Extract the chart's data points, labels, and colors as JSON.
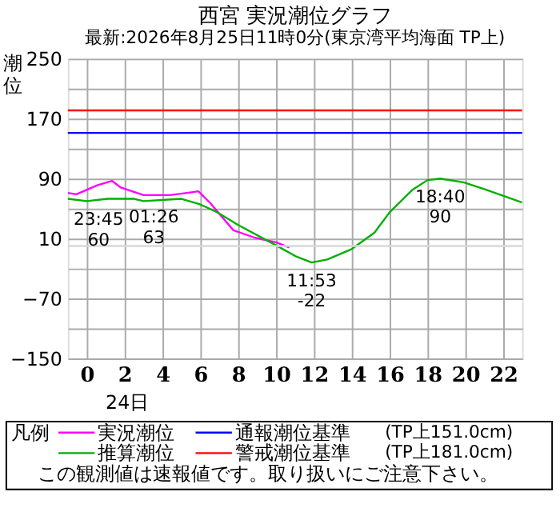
{
  "chart_data": {
    "type": "line",
    "title": "西宮 実況潮位グラフ",
    "subtitle": "最新:2026年8月25日11時0分(東京湾平均海面 TP上)",
    "ylabel": "潮位",
    "legend_title": "凡例",
    "xlim": [
      -1,
      23
    ],
    "xticks": [
      0,
      2,
      4,
      6,
      8,
      10,
      12,
      14,
      16,
      18,
      20,
      22
    ],
    "ylim": [
      -150,
      250
    ],
    "yticks": [
      -150,
      {
        "value": -110,
        "label": null
      },
      -70,
      {
        "value": -30,
        "label": null
      },
      10,
      {
        "value": 50,
        "label": null
      },
      90,
      {
        "value": 130,
        "label": null
      },
      170,
      {
        "value": 210,
        "label": null
      },
      250
    ],
    "grid": true,
    "legend": "bottom",
    "series": [
      {
        "name": "実況潮位",
        "color": "#ff00ff",
        "type": "line",
        "x": [
          -1,
          -0.55,
          0.55,
          1.33,
          1.8,
          3,
          4.4,
          5.3,
          5.9,
          6.5,
          7.75,
          8.9,
          10,
          10.7
        ],
        "values": [
          71,
          69,
          81,
          87,
          78,
          68,
          68,
          71,
          73,
          58,
          21,
          11,
          5,
          -2
        ]
      },
      {
        "name": "推算潮位",
        "color": "#00b000",
        "type": "line",
        "x": [
          -1,
          0,
          1.1,
          2.5,
          3,
          5,
          5.95,
          6.9,
          8,
          10,
          11.07,
          11.88,
          12.7,
          14,
          15.2,
          16,
          17.2,
          18,
          18.67,
          19.9,
          21,
          23
        ],
        "values": [
          63,
          60,
          63,
          63,
          60,
          63,
          56,
          45,
          28,
          1,
          -14,
          -22,
          -18,
          -4,
          18,
          45,
          75,
          88,
          90,
          85,
          76,
          58
        ]
      }
    ],
    "ref_lines": [
      {
        "axis": "y",
        "value": 151,
        "label": "通報潮位基準 (TP上151.0cm)",
        "color": "#0000ff"
      },
      {
        "axis": "y",
        "value": 181,
        "label": "警戒潮位基準 (TP上181.0cm)",
        "color": "#ff0000"
      },
      {
        "axis": "y",
        "value": 0,
        "color": "#d8d8d8"
      }
    ],
    "annotations": [
      {
        "text": "23:45\n60",
        "x": -0.25,
        "y": 60
      },
      {
        "text": "01:26\n63",
        "x": 1.43,
        "y": 63
      },
      {
        "text": "11:53\n-22",
        "x": 11.88,
        "y": -22
      },
      {
        "text": "18:40\n90",
        "x": 18.67,
        "y": 90
      },
      "24日",
      "この観測値は速報値です。取り扱いにご注意下さい。"
    ]
  }
}
